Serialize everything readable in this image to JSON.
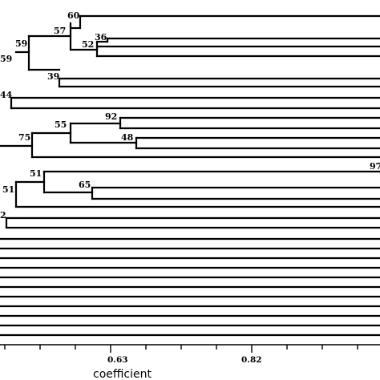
{
  "chart_data": {
    "type": "dendrogram",
    "axis": {
      "title": "coefficient",
      "ticks": [
        "0.63",
        "0.82"
      ]
    },
    "node_labels": [
      "60",
      "57",
      "36",
      "52",
      "59",
      "59",
      "39",
      "44",
      "92",
      "55",
      "48",
      "75",
      "97",
      "51",
      "65",
      "51",
      "2"
    ]
  }
}
